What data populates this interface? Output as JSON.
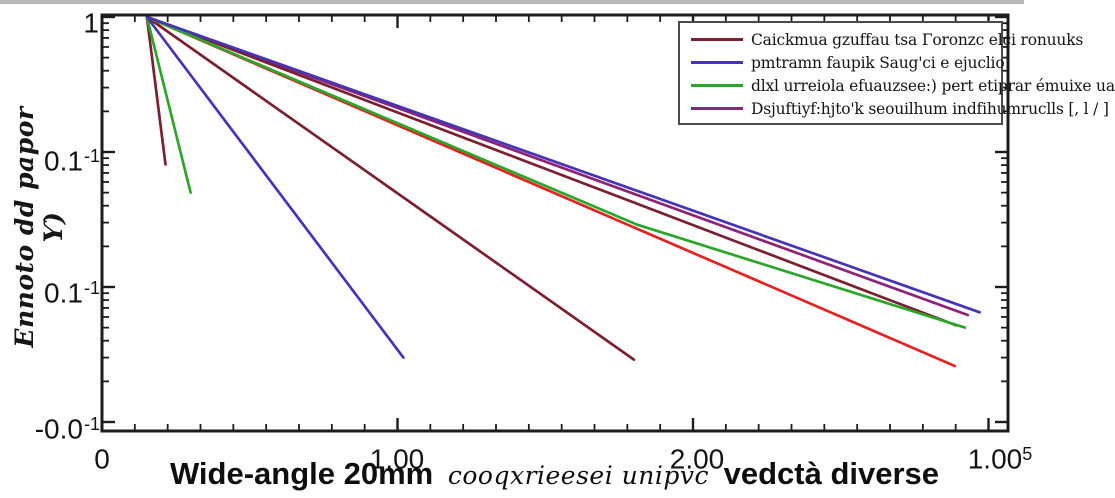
{
  "figure": {
    "y_axis": {
      "label": "Ennoto dd papor Ƴ)",
      "tick_labels": [
        {
          "text": "1",
          "sup": ""
        },
        {
          "text": "0.1",
          "sup": "-1"
        },
        {
          "text": "0.1",
          "sup": "-1"
        },
        {
          "text": "-0.0",
          "sup": "-1"
        }
      ]
    },
    "x_axis": {
      "tick_labels": [
        {
          "text": "0",
          "sup": ""
        },
        {
          "text": "1.00",
          "sup": ""
        },
        {
          "text": "2.00",
          "sup": ""
        },
        {
          "text": "1.00",
          "sup": "5"
        }
      ]
    },
    "caption": {
      "part1": "Wide-angle 20mm",
      "part2": "cooqxrieesei unipvc",
      "part3": "vedctà diverse"
    },
    "legend": {
      "entries": [
        {
          "color": "#7a2030",
          "label": "Caickmua gzuffau tsa Γoronzc elci ronuuks"
        },
        {
          "color": "#4633b6",
          "label": "pmtramn faupik Saug'ci e ejuclio"
        },
        {
          "color": "#2aa62a",
          "label": "dlxl urreiola efuauzsee:) pert etiprar émuixe ua"
        },
        {
          "color": "#8e2277",
          "label": "Dsjuftiyf:hjto'k seouilhum indfihumruclls [, l / ]"
        }
      ]
    }
  },
  "chart_data": {
    "type": "line",
    "x_scale": "linear",
    "y_scale": "log",
    "xlim": [
      0,
      3.06
    ],
    "ylim": [
      0.001,
      1
    ],
    "x_major_ticks": [
      0,
      1.0,
      2.0,
      3.0
    ],
    "y_major_ticks": [
      1,
      0.1,
      0.01,
      0.001
    ],
    "grid": false,
    "legend_position": "upper right",
    "title": "",
    "xlabel": "Wide-angle 20mm cooqxrieesei unipvc vedctà diverse",
    "ylabel": "Ennoto dd papor Ƴ)",
    "series": [
      {
        "name": "darkred-steep",
        "color": "#7a2030",
        "points": [
          [
            0.152,
            1
          ],
          [
            0.215,
            0.081
          ]
        ]
      },
      {
        "name": "green-steep",
        "color": "#2aa62a",
        "points": [
          [
            0.152,
            1
          ],
          [
            0.3,
            0.05
          ]
        ]
      },
      {
        "name": "indigo-steep",
        "color": "#4633b6",
        "points": [
          [
            0.152,
            1
          ],
          [
            1.02,
            0.003
          ]
        ]
      },
      {
        "name": "darkred-mid",
        "color": "#7a2030",
        "points": [
          [
            0.152,
            1
          ],
          [
            1.8,
            0.0029
          ]
        ]
      },
      {
        "name": "purple-shallow",
        "color": "#8e2277",
        "points": [
          [
            0.152,
            1
          ],
          [
            2.93,
            0.0062
          ]
        ]
      },
      {
        "name": "red-shallow",
        "color": "#e32322",
        "points": [
          [
            0.152,
            1
          ],
          [
            2.886,
            0.0026
          ]
        ]
      },
      {
        "name": "darkred-shallow",
        "color": "#7a2030",
        "points": [
          [
            0.152,
            1
          ],
          [
            2.89,
            0.0052
          ]
        ]
      },
      {
        "name": "green-shallow",
        "color": "#2aa62a",
        "points": [
          [
            0.152,
            1
          ],
          [
            1.81,
            0.029
          ],
          [
            2.92,
            0.005
          ]
        ]
      },
      {
        "name": "indigo-shallow",
        "color": "#4633b6",
        "points": [
          [
            0.152,
            1
          ],
          [
            2.97,
            0.0065
          ]
        ]
      }
    ]
  }
}
